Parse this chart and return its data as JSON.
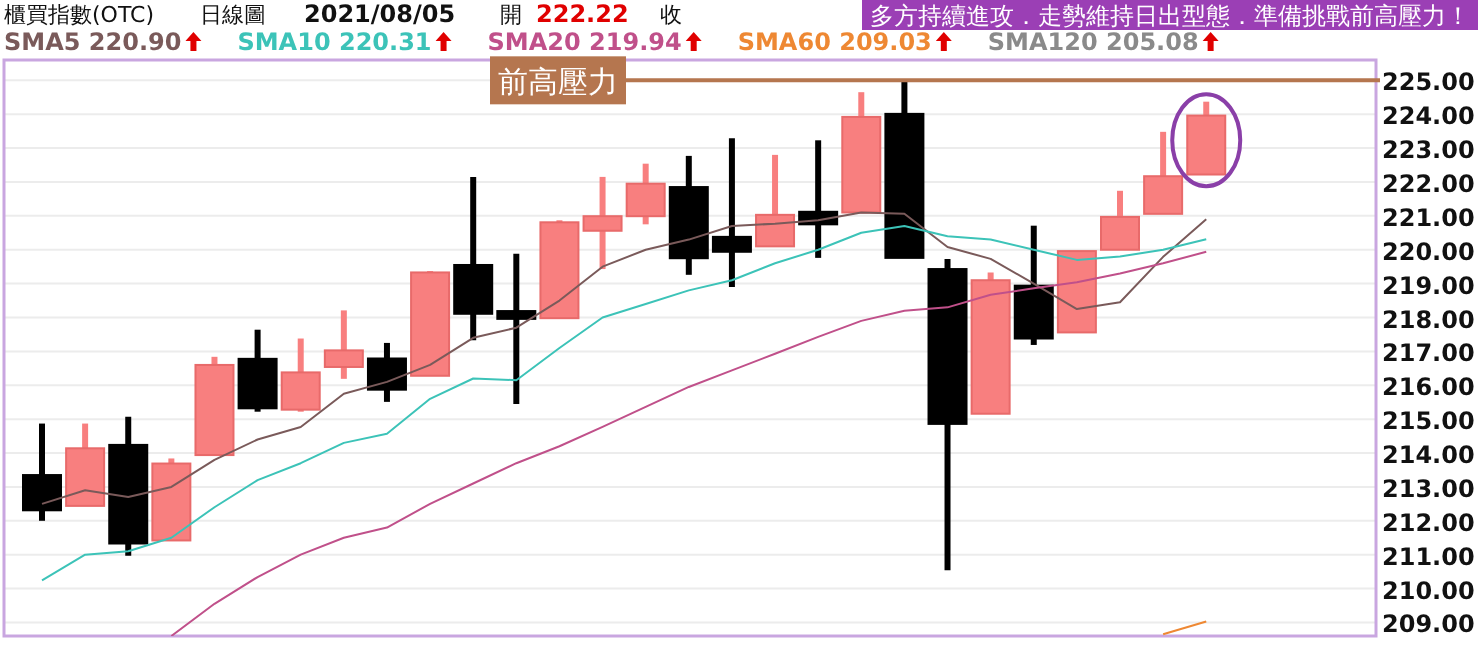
{
  "chart_data": {
    "type": "candlestick",
    "title": "櫃買指數(OTC)",
    "subtitle": "日線圖",
    "annotations": [
      "2021/08/05",
      "開",
      "222.22",
      "收",
      "多方持續進攻．走勢維持日出型態．準備挑戰前高壓力！",
      "SMA120 205.08"
    ],
    "categories": [
      null,
      null,
      null,
      null,
      null,
      null,
      null,
      null,
      null,
      null,
      null,
      null,
      null,
      null,
      null,
      null,
      null,
      null,
      null,
      null,
      null,
      null,
      null,
      null,
      null,
      null,
      null,
      null
    ],
    "ohlc": [
      [
        213.35,
        214.87,
        212.0,
        212.31
      ],
      [
        212.44,
        214.87,
        212.44,
        214.14
      ],
      [
        214.24,
        215.07,
        210.97,
        211.33
      ],
      [
        211.42,
        213.84,
        211.42,
        213.69
      ],
      [
        213.94,
        216.84,
        213.94,
        216.6
      ],
      [
        216.78,
        217.64,
        215.22,
        215.32
      ],
      [
        215.28,
        217.38,
        215.22,
        216.38
      ],
      [
        216.54,
        218.21,
        216.19,
        217.03
      ],
      [
        216.79,
        217.25,
        215.51,
        215.87
      ],
      [
        216.28,
        219.37,
        216.28,
        219.33
      ],
      [
        219.55,
        222.15,
        217.33,
        218.11
      ],
      [
        218.19,
        219.88,
        215.45,
        217.96
      ],
      [
        217.98,
        220.87,
        217.98,
        220.81
      ],
      [
        220.56,
        222.15,
        219.43,
        220.99
      ],
      [
        220.99,
        222.54,
        220.75,
        221.95
      ],
      [
        221.85,
        222.77,
        219.26,
        219.75
      ],
      [
        220.38,
        223.29,
        218.9,
        219.94
      ],
      [
        220.1,
        222.8,
        220.1,
        221.03
      ],
      [
        221.12,
        223.23,
        219.76,
        220.75
      ],
      [
        221.1,
        224.65,
        221.1,
        223.92
      ],
      [
        224.01,
        225.04,
        219.76,
        219.76
      ],
      [
        219.43,
        219.73,
        210.54,
        214.86
      ],
      [
        215.16,
        219.33,
        215.16,
        219.1
      ],
      [
        218.94,
        220.71,
        217.19,
        217.38
      ],
      [
        217.56,
        219.96,
        217.56,
        219.96
      ],
      [
        220.0,
        221.74,
        220.0,
        220.97
      ],
      [
        221.06,
        223.48,
        221.06,
        222.17
      ],
      [
        222.22,
        224.37,
        222.21,
        223.96
      ]
    ],
    "colors": [
      "#000000",
      "#f87f7f",
      "#000000",
      "#f87f7f",
      "#f87f7f",
      "#000000",
      "#f87f7f",
      "#f87f7f",
      "#000000",
      "#f87f7f",
      "#000000",
      "#000000",
      "#f87f7f",
      "#f87f7f",
      "#f87f7f",
      "#000000",
      "#000000",
      "#f87f7f",
      "#000000",
      "#f87f7f",
      "#000000",
      "#000000",
      "#f87f7f",
      "#000000",
      "#f87f7f",
      "#f87f7f",
      "#f87f7f",
      "#f87f7f"
    ],
    "series": [
      {
        "name": "SMA5 220.90",
        "type": "line",
        "color": "#7a5a5a",
        "values": [
          212.5,
          212.9,
          212.7,
          213.0,
          213.8,
          214.4,
          214.77,
          215.75,
          216.1,
          216.6,
          217.4,
          217.7,
          218.5,
          219.5,
          220.0,
          220.3,
          220.7,
          220.77,
          220.87,
          221.1,
          221.06,
          220.08,
          219.73,
          219.0,
          218.25,
          218.45,
          219.79,
          220.9
        ]
      },
      {
        "name": "SMA10 220.31",
        "type": "line",
        "color": "#3cc3b8",
        "values": [
          210.24,
          211.0,
          211.1,
          211.5,
          212.4,
          213.2,
          213.7,
          214.3,
          214.57,
          215.6,
          216.2,
          216.15,
          217.1,
          218.0,
          218.4,
          218.8,
          219.1,
          219.6,
          220.0,
          220.5,
          220.7,
          220.4,
          220.3,
          220.0,
          219.7,
          219.8,
          220.0,
          220.31
        ]
      },
      {
        "name": "SMA20 219.94",
        "type": "line",
        "color": "#c0508a",
        "values": [
          null,
          null,
          null,
          208.6,
          209.55,
          210.34,
          211.0,
          211.5,
          211.8,
          212.5,
          213.1,
          213.7,
          214.2,
          214.77,
          215.36,
          215.95,
          216.44,
          216.93,
          217.43,
          217.9,
          218.2,
          218.3,
          218.67,
          218.86,
          219.04,
          219.3,
          219.6,
          219.94
        ]
      },
      {
        "name": "SMA60 209.03",
        "type": "line",
        "color": "#ee8833",
        "values": [
          null,
          null,
          null,
          null,
          null,
          null,
          null,
          null,
          null,
          null,
          null,
          null,
          null,
          null,
          null,
          null,
          null,
          null,
          null,
          null,
          null,
          null,
          null,
          null,
          null,
          null,
          208.65,
          209.03
        ]
      }
    ],
    "ylim": [
      208.6,
      225.6
    ],
    "yticks": [
      {
        "value": 209,
        "label": "209.00"
      },
      {
        "value": 210,
        "label": "210.00"
      },
      {
        "value": 211,
        "label": "211.00"
      },
      {
        "value": 212,
        "label": "212.00"
      },
      {
        "value": 213,
        "label": "213.00"
      },
      {
        "value": 214,
        "label": "214.00"
      },
      {
        "value": 215,
        "label": "215.00"
      },
      {
        "value": 216,
        "label": "216.00"
      },
      {
        "value": 217,
        "label": "217.00"
      },
      {
        "value": 218,
        "label": "218.00"
      },
      {
        "value": 219,
        "label": "219.00"
      },
      {
        "value": 220,
        "label": "220.00"
      },
      {
        "value": 221,
        "label": "221.00"
      },
      {
        "value": 222,
        "label": "222.00"
      },
      {
        "value": 223,
        "label": "223.00"
      },
      {
        "value": 224,
        "label": "224.00"
      },
      {
        "value": 225,
        "label": "225.00"
      }
    ],
    "grid": "y",
    "legend": "top",
    "ref_lines": [
      {
        "axis": "y",
        "value": 225,
        "label": "前高壓力",
        "color": "#b5764f"
      }
    ]
  }
}
